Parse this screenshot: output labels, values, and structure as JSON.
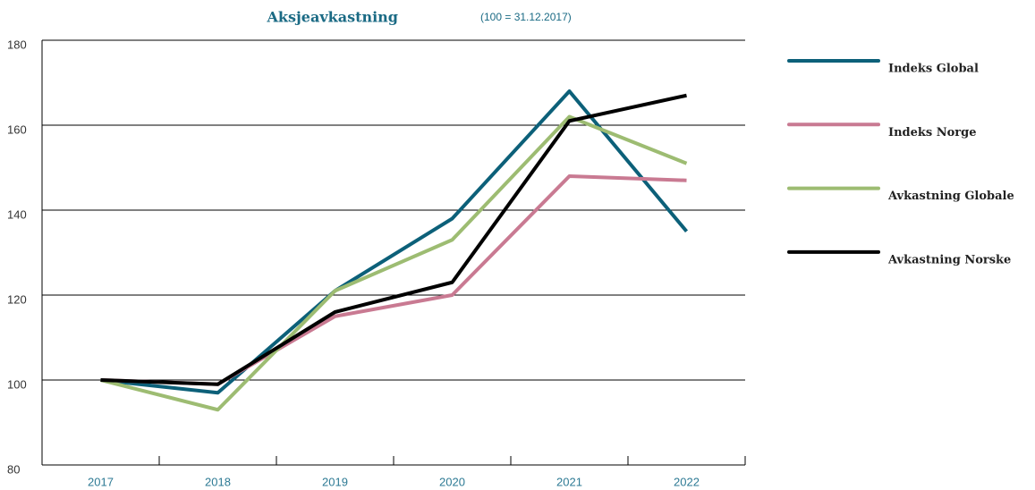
{
  "chart_data": {
    "type": "line",
    "title": "Aksjeavkastning",
    "subtitle": "(100 = 31.12.2017)",
    "categories": [
      "2017",
      "2018",
      "2019",
      "2020",
      "2021",
      "2022"
    ],
    "series": [
      {
        "name": "Indeks Global",
        "color": "#0c6079",
        "values": [
          100,
          97,
          121,
          138,
          168,
          135
        ]
      },
      {
        "name": "Indeks Norge",
        "color": "#c97a92",
        "values": [
          100,
          99,
          115,
          120,
          148,
          147
        ]
      },
      {
        "name": "Avkastning Globale",
        "color": "#9dbc72",
        "values": [
          100,
          93,
          121,
          133,
          162,
          151
        ]
      },
      {
        "name": "Avkastning Norske",
        "color": "#000000",
        "values": [
          100,
          99,
          116,
          123,
          161,
          167
        ]
      }
    ],
    "ylim": [
      80,
      180
    ],
    "yticks": [
      80,
      100,
      120,
      140,
      160,
      180
    ],
    "grid": true,
    "legend": "right"
  }
}
